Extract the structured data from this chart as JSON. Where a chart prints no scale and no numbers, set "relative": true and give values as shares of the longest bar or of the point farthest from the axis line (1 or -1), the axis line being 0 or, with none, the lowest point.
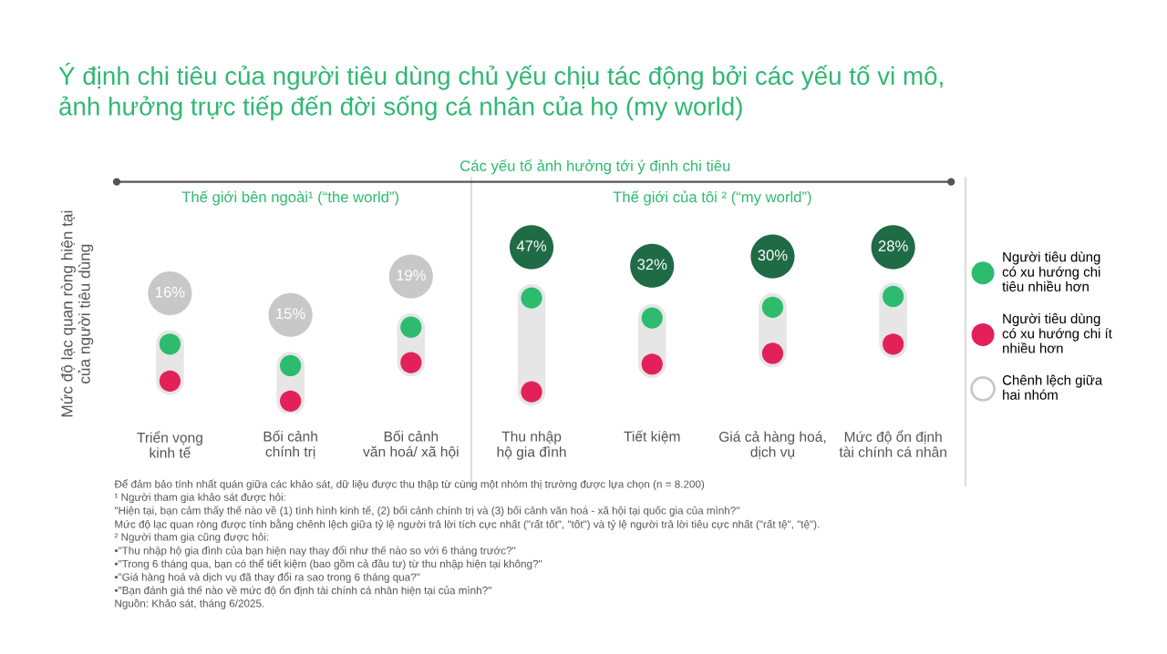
{
  "chart_data": {
    "type": "scatter",
    "title": "Ý định chi tiêu của người tiêu dùng chủ yếu chịu tác động bởi các yếu tố vi mô,\nảnh hưởng trực tiếp đến đời sống cá nhân của họ (my world)",
    "ylabel": "Mức độ lạc quan ròng hiện tại\ncủa người tiêu dùng",
    "categories": [
      "Triển vọng\nkinh tế",
      "Bối cảnh\nchính trị",
      "Bối cảnh\nvăn hoá/ xã hội",
      "Thu nhập\nhộ gia đình",
      "Tiết kiệm",
      "Giá cả hàng hoá,\ndịch vụ",
      "Mức độ ổn định\ntài chính cá nhân"
    ],
    "relative": true,
    "marker": "circle",
    "legend": "right",
    "series": [
      {
        "name": "Chênh lệch giữa\nhai nhóm",
        "color": "#c8c8c8",
        "colors": [
          "#c8c8c8",
          "#c8c8c8",
          "#c8c8c8",
          "#1f6b46",
          "#1f6b46",
          "#1f6b46",
          "#1f6b46"
        ],
        "values": [
          0.7,
          0.56,
          0.81,
          1,
          0.88,
          0.94,
          1
        ]
      },
      {
        "name": "Người tiêu dùng\ncó xu hướng chi\ntiêu nhiều hơn",
        "color": "#2dbb6e",
        "values": [
          0.37,
          0.23,
          0.48,
          0.67,
          0.54,
          0.61,
          0.68
        ]
      },
      {
        "name": "Người tiêu dùng\ncó xu hướng chi ít\nnhiều hơn",
        "color": "#e2215a",
        "values": [
          0.13,
          0,
          0.25,
          0.06,
          0.24,
          0.31,
          0.37
        ]
      }
    ],
    "annotations": [
      {
        "text": "16%",
        "x": "Triển vọng\nkinh tế",
        "y": 0.7
      },
      {
        "text": "15%",
        "x": "Bối cảnh\nchính trị",
        "y": 0.56
      },
      {
        "text": "19%",
        "x": "Bối cảnh\nvăn hoá/ xã hội",
        "y": 0.81
      },
      {
        "text": "47%",
        "x": "Thu nhập\nhộ gia đình",
        "y": 1
      },
      {
        "text": "32%",
        "x": "Tiết kiệm",
        "y": 0.88
      },
      {
        "text": "30%",
        "x": "Giá cả hàng hoá,\ndịch vụ",
        "y": 0.94
      },
      {
        "text": "28%",
        "x": "Mức độ ổn định\ntài chính cá nhân",
        "y": 1
      },
      "Các yếu tố ảnh hưởng tới ý định chi tiêu",
      "Thế giới bên ngoài¹ (“the world”)",
      "Thế giới của tôi ² (“my world”)",
      "Để đảm bảo tính nhất quán giữa các khảo sát, dữ liệu được thu thập từ cùng một nhóm thị trường được lựa chọn (n = 8.200)",
      "¹ Người tham gia khảo sát được hỏi:",
      "\"Hiện tại, bạn cảm thấy thế nào về (1) tình hình kinh tế, (2) bối cảnh chính trị và (3) bối cảnh văn hoá - xã hội tại quốc gia của mình?\"",
      "Mức độ lạc quan ròng được tính bằng chênh lệch giữa tỷ lệ người trả lời tích cực nhất (\"rất tốt\", \"tốt\") và tỷ lệ người trả lời tiêu cực nhất (\"rất tệ\", \"tệ\").",
      "² Người tham gia cũng được hỏi:",
      "•\"Thu nhập hộ gia đình của bạn hiện nay thay đổi như thế nào so với 6 tháng trước?\"",
      "•\"Trong 6 tháng qua, bạn có thể tiết kiệm (bao gồm cả đầu tư) từ thu nhập hiện tại không?\"",
      "•\"Giá hàng hoá và dịch vụ đã thay đổi ra sao trong 6 tháng qua?\"",
      "•\"Bạn đánh giá thế nào về mức độ ổn định tài chính cá nhân hiện tại của mình?\"",
      "Nguồn: Khảo sát, tháng 6/2025."
    ]
  }
}
